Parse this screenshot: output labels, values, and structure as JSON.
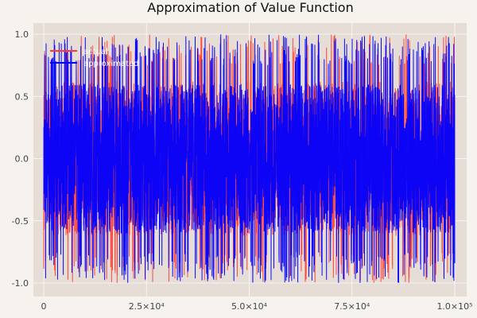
{
  "chart_data": {
    "type": "line",
    "title": "Approximation of Value Function",
    "xlabel": "",
    "ylabel": "",
    "xlim": [
      0,
      100000
    ],
    "ylim": [
      -1.0,
      1.0
    ],
    "x_ticks": [
      0,
      25000,
      50000,
      75000,
      100000
    ],
    "x_tick_labels": [
      "0",
      "2.5×10⁴",
      "5.0×10⁴",
      "7.5×10⁴",
      "1.0×10⁵"
    ],
    "y_ticks": [
      1.0,
      0.5,
      0.0,
      -0.5,
      -1.0
    ],
    "y_tick_labels": [
      "1.0",
      "0.5",
      "0.0",
      "-0.5",
      "-1.0"
    ],
    "grid": true,
    "legend_position": "top-left",
    "series": [
      {
        "name": "actual",
        "color": "#ff3b30",
        "description_values": "dense noisy signal spanning roughly -1.0 to 1.0 over x = 0 to 100000"
      },
      {
        "name": "approximated",
        "color": "#0000ff",
        "description_values": "dense noisy signal spanning roughly -1.0 to 1.0 over x = 0 to 100000"
      }
    ],
    "colors": {
      "background": "#f6f2ed",
      "plot_area": "#e5ddd6",
      "grid": "#ffffff",
      "axis_text": "#444444",
      "title": "#111111"
    }
  }
}
